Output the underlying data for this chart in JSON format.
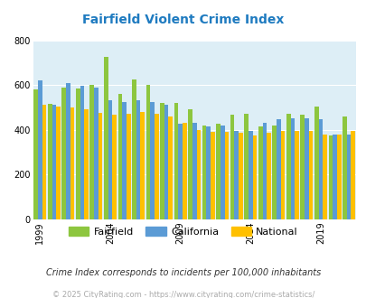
{
  "title": "Fairfield Violent Crime Index",
  "years": [
    1999,
    2000,
    2001,
    2002,
    2003,
    2004,
    2005,
    2006,
    2007,
    2008,
    2009,
    2010,
    2011,
    2012,
    2013,
    2014,
    2015,
    2016,
    2017,
    2018,
    2019,
    2020,
    2021
  ],
  "fairfield": [
    580,
    515,
    590,
    585,
    600,
    725,
    560,
    625,
    600,
    520,
    520,
    490,
    420,
    425,
    465,
    470,
    415,
    420,
    470,
    465,
    505,
    375,
    460
  ],
  "california": [
    620,
    510,
    610,
    595,
    590,
    530,
    525,
    530,
    525,
    510,
    425,
    430,
    415,
    420,
    395,
    395,
    430,
    445,
    450,
    450,
    445,
    380,
    380
  ],
  "national": [
    510,
    505,
    500,
    490,
    475,
    465,
    470,
    480,
    470,
    460,
    430,
    400,
    390,
    390,
    385,
    375,
    385,
    395,
    395,
    395,
    380,
    380,
    395
  ],
  "fairfield_color": "#8dc63f",
  "california_color": "#5b9bd5",
  "national_color": "#ffc000",
  "bg_color": "#ddeef6",
  "ylim": [
    0,
    800
  ],
  "yticks": [
    0,
    200,
    400,
    600,
    800
  ],
  "xlabel_ticks": [
    1999,
    2004,
    2009,
    2014,
    2019
  ],
  "footnote1": "Crime Index corresponds to incidents per 100,000 inhabitants",
  "footnote2": "© 2025 CityRating.com - https://www.cityrating.com/crime-statistics/",
  "title_color": "#1f7bc0",
  "footnote1_color": "#333333",
  "footnote2_color": "#aaaaaa"
}
